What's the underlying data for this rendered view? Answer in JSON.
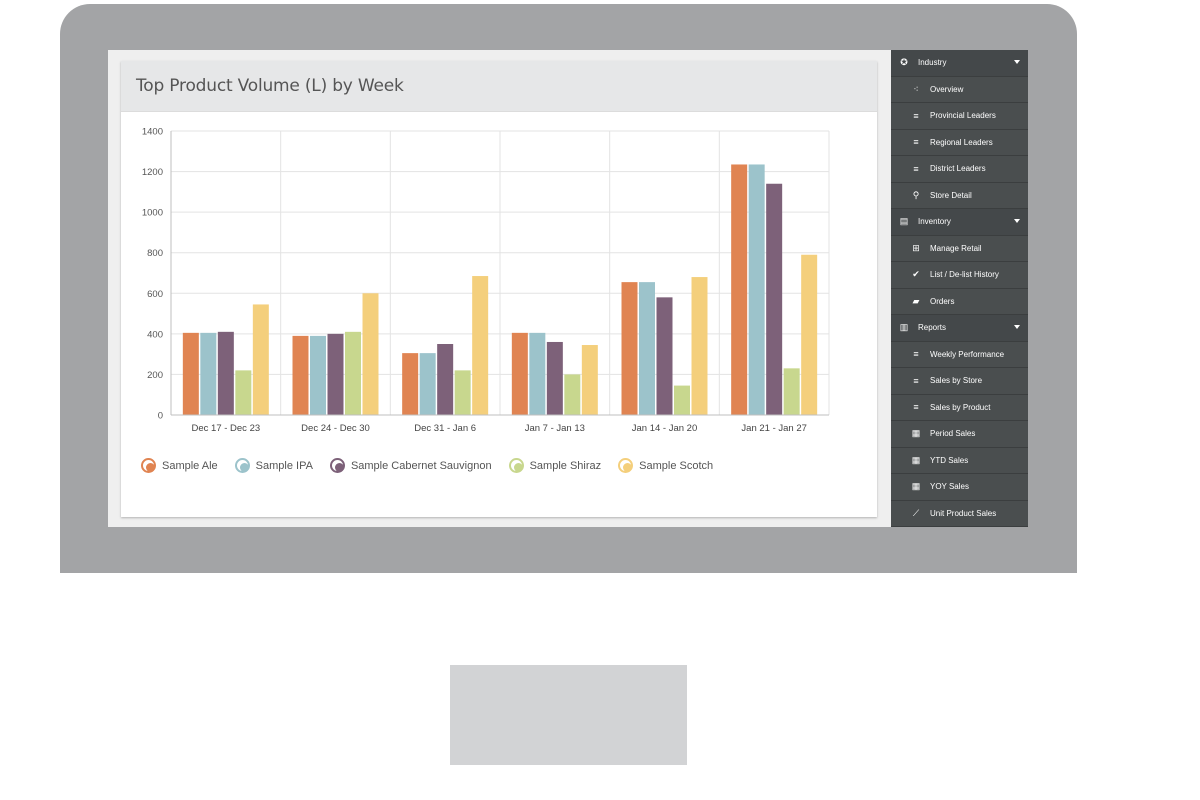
{
  "card": {
    "title": "Top Product Volume (L) by Week"
  },
  "chart_data": {
    "type": "bar",
    "title": "Top Product Volume (L) by Week",
    "categories": [
      "Dec 17 - Dec 23",
      "Dec 24 - Dec 30",
      "Dec 31 - Jan 6",
      "Jan 7 - Jan 13",
      "Jan 14 - Jan 20",
      "Jan 21 - Jan 27"
    ],
    "y_ticks": [
      "0",
      "200",
      "400",
      "600",
      "800",
      "1000",
      "1200",
      "1400"
    ],
    "ylim": [
      0,
      1400
    ],
    "grid": true,
    "legend_position": "bottom-left",
    "series": [
      {
        "name": "Sample Ale",
        "color": "#e08452",
        "values": [
          405,
          390,
          305,
          405,
          655,
          1235
        ]
      },
      {
        "name": "Sample IPA",
        "color": "#9cc3cb",
        "values": [
          405,
          390,
          305,
          405,
          655,
          1235
        ]
      },
      {
        "name": "Sample Cabernet Sauvignon",
        "color": "#7d6179",
        "values": [
          410,
          400,
          350,
          360,
          580,
          1140
        ]
      },
      {
        "name": "Sample Shiraz",
        "color": "#c8d78e",
        "values": [
          220,
          410,
          220,
          200,
          145,
          230
        ]
      },
      {
        "name": "Sample Scotch",
        "color": "#f4cf7c",
        "values": [
          545,
          600,
          685,
          345,
          680,
          790
        ]
      }
    ]
  },
  "sidebar": {
    "items": [
      {
        "label": "Industry",
        "icon": "compass-icon",
        "glyph": "✪",
        "type": "section"
      },
      {
        "label": "Overview",
        "icon": "overview-icon",
        "glyph": "⁖",
        "type": "sub"
      },
      {
        "label": "Provincial Leaders",
        "icon": "list-icon",
        "glyph": "≡",
        "type": "sub"
      },
      {
        "label": "Regional Leaders",
        "icon": "list-icon",
        "glyph": "≡",
        "type": "sub"
      },
      {
        "label": "District Leaders",
        "icon": "list-icon",
        "glyph": "≡",
        "type": "sub"
      },
      {
        "label": "Store Detail",
        "icon": "map-marker-icon",
        "glyph": "⚲",
        "type": "sub"
      },
      {
        "label": "Inventory",
        "icon": "table-icon",
        "glyph": "▤",
        "type": "section"
      },
      {
        "label": "Manage Retail",
        "icon": "plus-square-icon",
        "glyph": "⊞",
        "type": "sub"
      },
      {
        "label": "List / De-list History",
        "icon": "check-circle-icon",
        "glyph": "✔",
        "type": "sub"
      },
      {
        "label": "Orders",
        "icon": "truck-icon",
        "glyph": "▰",
        "type": "sub"
      },
      {
        "label": "Reports",
        "icon": "bar-chart-icon",
        "glyph": "▥",
        "type": "section"
      },
      {
        "label": "Weekly Performance",
        "icon": "list-icon",
        "glyph": "≡",
        "type": "sub"
      },
      {
        "label": "Sales by Store",
        "icon": "list-icon",
        "glyph": "≡",
        "type": "sub"
      },
      {
        "label": "Sales by Product",
        "icon": "list-icon",
        "glyph": "≡",
        "type": "sub"
      },
      {
        "label": "Period Sales",
        "icon": "calendar-icon",
        "glyph": "▦",
        "type": "sub"
      },
      {
        "label": "YTD Sales",
        "icon": "calendar-icon",
        "glyph": "▦",
        "type": "sub"
      },
      {
        "label": "YOY Sales",
        "icon": "calendar-icon",
        "glyph": "▦",
        "type": "sub"
      },
      {
        "label": "Unit Product Sales",
        "icon": "line-chart-icon",
        "glyph": "⟋",
        "type": "sub"
      }
    ]
  }
}
